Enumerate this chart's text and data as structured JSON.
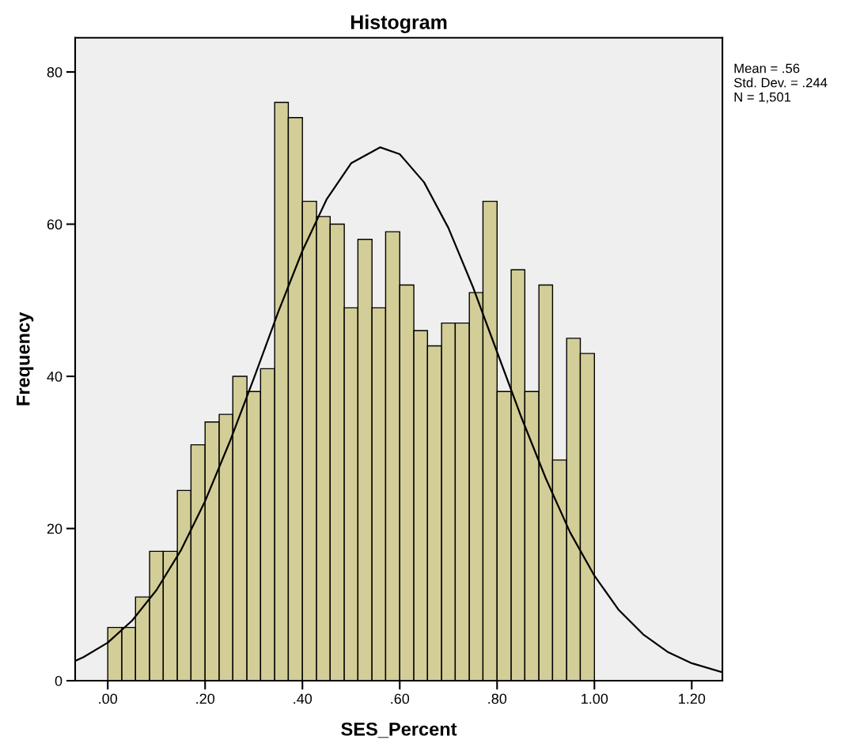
{
  "chart_data": {
    "type": "histogram",
    "title": "Histogram",
    "xlabel": "SES_Percent",
    "ylabel": "Frequency",
    "bins": [
      0,
      0.029,
      0.057,
      0.086,
      0.114,
      0.143,
      0.171,
      0.2,
      0.229,
      0.257,
      0.286,
      0.314,
      0.343,
      0.371,
      0.4,
      0.429,
      0.457,
      0.486,
      0.514,
      0.543,
      0.571,
      0.6,
      0.629,
      0.657,
      0.686,
      0.714,
      0.743,
      0.771,
      0.8,
      0.829,
      0.857,
      0.886,
      0.914,
      0.943,
      0.971,
      1.0
    ],
    "series": [
      {
        "color": "#d3ce97",
        "values": [
          7,
          7,
          11,
          17,
          17,
          25,
          31,
          34,
          35,
          40,
          38,
          41,
          76,
          74,
          63,
          61,
          60,
          49,
          58,
          49,
          59,
          52,
          46,
          44,
          47,
          47,
          51,
          63,
          38,
          54,
          38,
          52,
          29,
          45,
          43
        ]
      },
      {
        "type": "line",
        "color": "#000000",
        "x": [
          -0.067,
          -0.05,
          0.0,
          0.05,
          0.1,
          0.15,
          0.2,
          0.25,
          0.3,
          0.35,
          0.4,
          0.45,
          0.5,
          0.56,
          0.6,
          0.65,
          0.7,
          0.75,
          0.8,
          0.85,
          0.9,
          0.95,
          1.0,
          1.05,
          1.1,
          1.15,
          1.2,
          1.263
        ],
        "values": [
          2.6,
          3.1,
          5.0,
          7.9,
          11.9,
          17.1,
          23.6,
          31.3,
          39.7,
          48.4,
          56.5,
          63.3,
          68.0,
          70.1,
          69.2,
          65.5,
          59.5,
          51.8,
          43.2,
          34.6,
          26.6,
          19.5,
          13.8,
          9.3,
          6.1,
          3.8,
          2.3,
          1.1
        ]
      }
    ],
    "xlim": [
      -0.067,
      1.263
    ],
    "ylim": [
      0,
      84.5
    ],
    "xticks": [
      {
        "value": 0,
        "label": ".00"
      },
      {
        "value": 0.2,
        "label": ".20"
      },
      {
        "value": 0.4,
        "label": ".40"
      },
      {
        "value": 0.6,
        "label": ".60"
      },
      {
        "value": 0.8,
        "label": ".80"
      },
      {
        "value": 1.0,
        "label": "1.00"
      },
      {
        "value": 1.2,
        "label": "1.20"
      }
    ],
    "yticks": [
      0,
      20,
      40,
      60,
      80
    ],
    "annotations": [
      "Mean = .56",
      "Std. Dev. = .244",
      "N = 1,501"
    ],
    "grid": false,
    "legend": false,
    "marker": "none",
    "line_style": "solid"
  }
}
